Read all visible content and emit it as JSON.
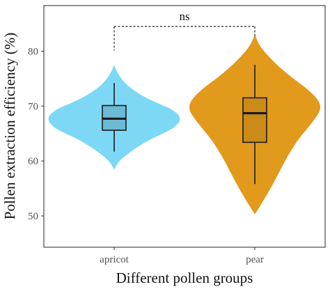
{
  "chart_data": {
    "type": "violin",
    "title": "",
    "xlabel": "Different pollen groups",
    "ylabel": "Pollen extraction efficiency (%)",
    "ylim": [
      44.3,
      88.3
    ],
    "yticks": [
      50,
      60,
      70,
      80
    ],
    "grid": false,
    "legend": "none",
    "categories": [
      "apricot",
      "pear"
    ],
    "groups": [
      {
        "name": "apricot",
        "color": "#7dd8f6",
        "box": {
          "q1": 65.6,
          "median": 67.7,
          "q3": 70.1,
          "whisker_low": 61.7,
          "whisker_high": 74.2
        },
        "density": {
          "y": [
            58.4,
            60,
            62,
            64,
            65,
            66,
            67,
            67.7,
            68.5,
            69.5,
            70.5,
            72,
            74,
            76,
            77.5
          ],
          "width": [
            0.0,
            0.07,
            0.28,
            0.55,
            0.74,
            0.9,
            0.98,
            1.0,
            0.97,
            0.86,
            0.66,
            0.4,
            0.17,
            0.05,
            0.0
          ]
        }
      },
      {
        "name": "pear",
        "color": "#e29a1c",
        "box": {
          "q1": 63.4,
          "median": 68.7,
          "q3": 71.5,
          "whisker_low": 55.8,
          "whisker_high": 77.5
        },
        "density": {
          "y": [
            50.3,
            52,
            55,
            58,
            61,
            64,
            66,
            68,
            69.5,
            71,
            73,
            75,
            77,
            79,
            81,
            83
          ],
          "width": [
            0.0,
            0.09,
            0.24,
            0.37,
            0.5,
            0.66,
            0.8,
            0.93,
            1.0,
            0.97,
            0.81,
            0.58,
            0.38,
            0.21,
            0.07,
            0.0
          ]
        }
      }
    ],
    "annotations": [
      {
        "text": "ns",
        "between": [
          "apricot",
          "pear"
        ],
        "at_y": 84.5,
        "drop_to": [
          80.1,
          82.5
        ]
      }
    ]
  }
}
